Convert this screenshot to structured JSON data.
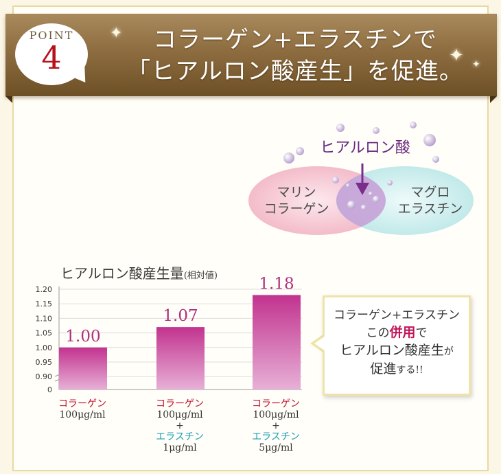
{
  "header": {
    "point_word": "POINT",
    "point_number": "4",
    "title_line1": "コラーゲン+エラスチンで",
    "title_line2": "「ヒアルロン酸産生」を促進。"
  },
  "diagram": {
    "top_label": "ヒアルロン酸",
    "left_label_line1": "マリン",
    "left_label_line2": "コラーゲン",
    "right_label_line1": "マグロ",
    "right_label_line2": "エラスチン",
    "left_color": "#f4c0cc",
    "right_color": "#c7ecec",
    "overlap_color": "#c9a6d6",
    "arrow_color": "#7a2d8a"
  },
  "chart_data": {
    "type": "bar",
    "title": "ヒアルロン酸産生量",
    "title_note": "(相対値)",
    "y_ticks": [
      "1.20",
      "1.15",
      "1.10",
      "1.05",
      "1.00",
      "0.95",
      "0.90",
      "0"
    ],
    "values": [
      1.0,
      1.07,
      1.18
    ],
    "value_labels": [
      "1.00",
      "1.07",
      "1.18"
    ],
    "bar_color_top": "#c2338f",
    "bar_color_bottom": "#e7b0d6",
    "label_color": "#b0307e",
    "categories": [
      {
        "line1": "コラーゲン",
        "line2": "100μg/ml"
      },
      {
        "line1": "コラーゲン",
        "line2": "100μg/ml",
        "plus": "+",
        "line3": "エラスチン",
        "line4": "1μg/ml"
      },
      {
        "line1": "コラーゲン",
        "line2": "100μg/ml",
        "plus": "+",
        "line3": "エラスチン",
        "line4": "5μg/ml"
      }
    ]
  },
  "callout": {
    "line1": "コラーゲン+エラスチン",
    "line2_pre": "この",
    "line2_hl": "併用",
    "line2_post": "で",
    "line3_main": "ヒアルロン酸産生",
    "line3_tail": "が",
    "line4_main": "促進",
    "line4_tail": "する!!"
  }
}
